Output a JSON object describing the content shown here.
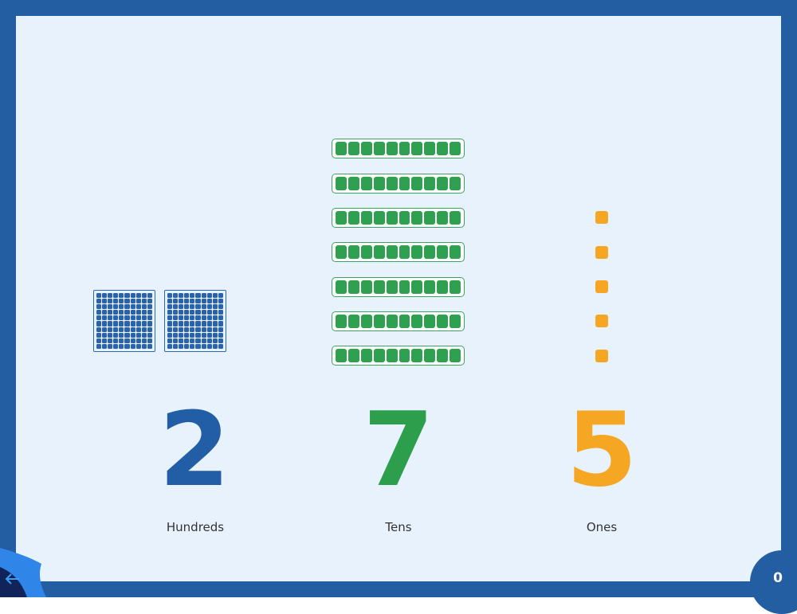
{
  "place_values": {
    "hundreds": {
      "digit": "2",
      "label": "Hundreds",
      "count": 2,
      "color": "#215ea6"
    },
    "tens": {
      "digit": "7",
      "label": "Tens",
      "count": 7,
      "color": "#2c9e4c"
    },
    "ones": {
      "digit": "5",
      "label": "Ones",
      "count": 5,
      "color": "#f5a623"
    }
  },
  "navigation": {
    "back_icon": "arrow-left-icon",
    "counter": "0"
  },
  "colors": {
    "frame": "#235ea3",
    "background": "#e8f2fc"
  }
}
